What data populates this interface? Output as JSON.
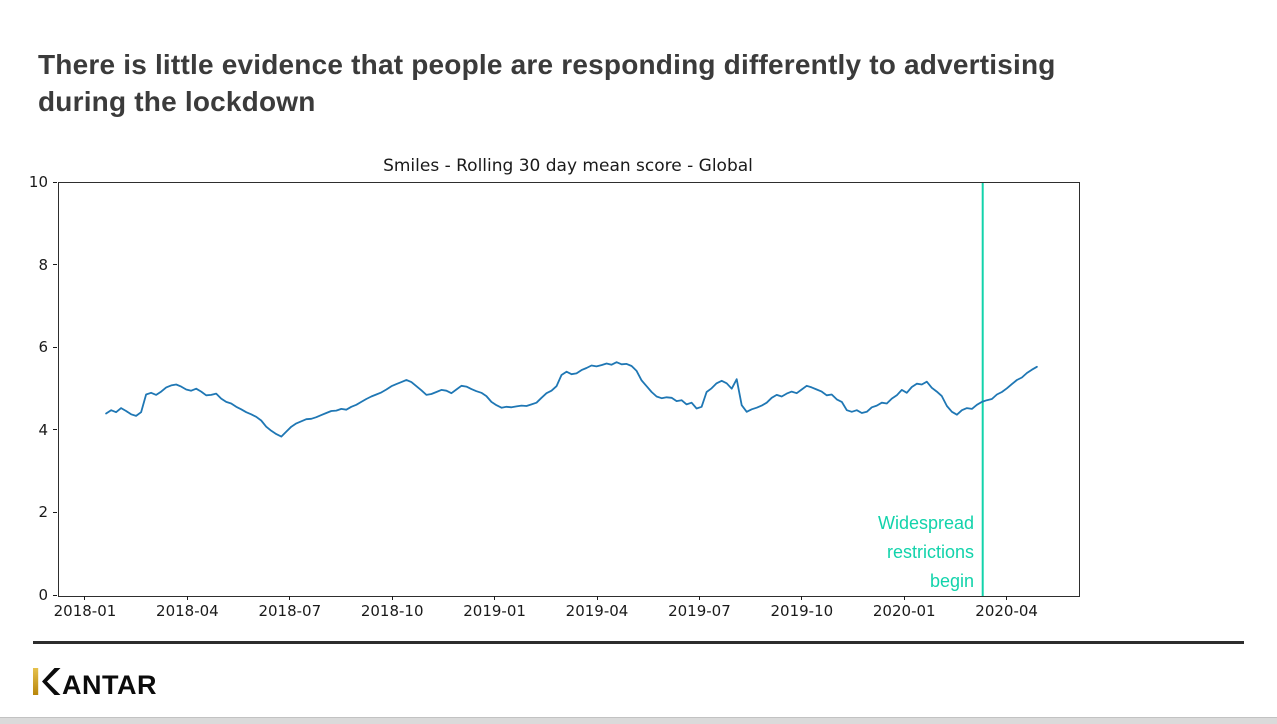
{
  "header": {
    "title_lines": [
      "There is little evidence that people are responding differently to advertising",
      "during the lockdown"
    ],
    "title_color": "#3b3b3b"
  },
  "chart_data": {
    "type": "line",
    "title": "Smiles - Rolling 30 day mean score - Global",
    "xlabel": "",
    "ylabel": "",
    "grid": false,
    "legend": "none",
    "x_axis": {
      "tick_labels": [
        "2018-01",
        "2018-04",
        "2018-07",
        "2018-10",
        "2019-01",
        "2019-04",
        "2019-07",
        "2019-10",
        "2020-01",
        "2020-04"
      ],
      "tick_months": [
        0,
        3,
        6,
        9,
        12,
        15,
        18,
        21,
        24,
        27
      ],
      "lim": [
        -0.79,
        29.09
      ]
    },
    "y_axis": {
      "tick_labels": [
        "0",
        "2",
        "4",
        "6",
        "8",
        "10"
      ],
      "ticks": [
        0,
        2,
        4,
        6,
        8,
        10
      ],
      "lim": [
        0,
        10
      ]
    },
    "series": [
      {
        "name": "Smiles rolling 30 day mean score (Global)",
        "color": "#1f77b4",
        "x_start_month": 0.59,
        "x_step_month": 0.1466,
        "values": [
          4.42,
          4.5,
          4.45,
          4.55,
          4.48,
          4.4,
          4.36,
          4.45,
          4.88,
          4.92,
          4.87,
          4.95,
          5.05,
          5.1,
          5.12,
          5.07,
          5.0,
          4.97,
          5.02,
          4.95,
          4.86,
          4.87,
          4.9,
          4.78,
          4.7,
          4.66,
          4.58,
          4.52,
          4.45,
          4.4,
          4.34,
          4.25,
          4.1,
          4.0,
          3.92,
          3.86,
          3.98,
          4.1,
          4.18,
          4.23,
          4.28,
          4.29,
          4.33,
          4.38,
          4.43,
          4.48,
          4.49,
          4.53,
          4.51,
          4.58,
          4.63,
          4.7,
          4.77,
          4.83,
          4.88,
          4.93,
          5.0,
          5.08,
          5.13,
          5.18,
          5.23,
          5.18,
          5.08,
          4.98,
          4.87,
          4.89,
          4.94,
          4.99,
          4.97,
          4.91,
          5.0,
          5.09,
          5.07,
          5.01,
          4.96,
          4.92,
          4.84,
          4.7,
          4.62,
          4.56,
          4.58,
          4.57,
          4.59,
          4.61,
          4.6,
          4.64,
          4.68,
          4.8,
          4.91,
          4.97,
          5.08,
          5.35,
          5.43,
          5.37,
          5.39,
          5.47,
          5.52,
          5.58,
          5.56,
          5.59,
          5.63,
          5.6,
          5.66,
          5.61,
          5.62,
          5.57,
          5.45,
          5.22,
          5.08,
          4.94,
          4.83,
          4.79,
          4.81,
          4.8,
          4.72,
          4.74,
          4.64,
          4.68,
          4.54,
          4.58,
          4.94,
          5.03,
          5.15,
          5.21,
          5.15,
          5.02,
          5.25,
          4.62,
          4.46,
          4.52,
          4.56,
          4.61,
          4.68,
          4.8,
          4.87,
          4.83,
          4.9,
          4.95,
          4.91,
          5.0,
          5.09,
          5.05,
          5.0,
          4.95,
          4.86,
          4.88,
          4.76,
          4.7,
          4.5,
          4.46,
          4.5,
          4.43,
          4.46,
          4.57,
          4.61,
          4.68,
          4.66,
          4.78,
          4.86,
          4.99,
          4.92,
          5.06,
          5.14,
          5.12,
          5.19,
          5.04,
          4.95,
          4.84,
          4.6,
          4.46,
          4.39,
          4.5,
          4.55,
          4.53,
          4.63,
          4.7,
          4.74,
          4.77,
          4.88,
          4.94,
          5.03,
          5.13,
          5.23,
          5.29,
          5.4,
          5.48,
          5.55
        ]
      }
    ],
    "annotation": {
      "vline_month": 26.27,
      "color": "#12d3ab",
      "label_lines": [
        "Widespread",
        "restrictions",
        "begin"
      ]
    }
  },
  "footer": {
    "brand_name": "KANTAR",
    "brand_rest": "ANTAR",
    "brand_gold": "#c9992b",
    "brand_black": "#0b0b0b"
  }
}
